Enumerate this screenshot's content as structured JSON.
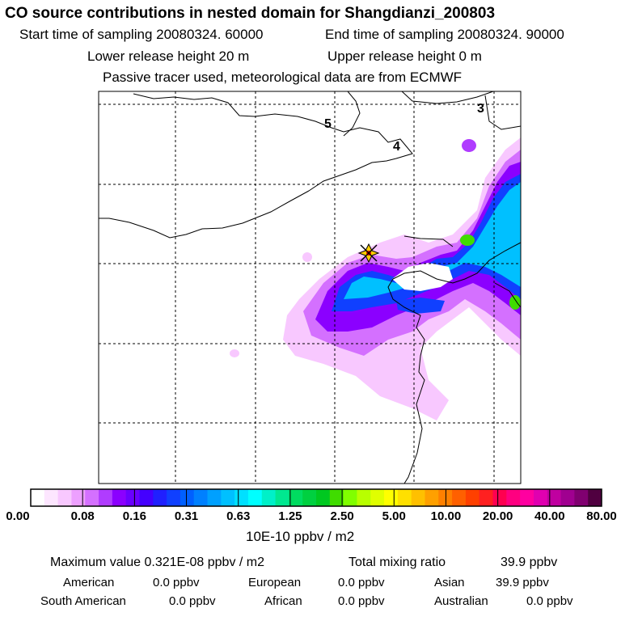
{
  "header": {
    "title": "CO  source contributions in nested domain for Shangdianzi_200803",
    "start_time": "Start time of sampling 20080324. 60000",
    "end_time": "End time of sampling 20080324. 90000",
    "lower_height": "Lower release height   20 m",
    "upper_height": "Upper release height    0 m",
    "note": "Passive tracer used, meteorological data are from ECMWF"
  },
  "map": {
    "labels": [
      "5",
      "4",
      "3"
    ]
  },
  "colorbar": {
    "tick_labels": [
      "0.00",
      "0.08",
      "0.16",
      "0.31",
      "0.63",
      "1.25",
      "2.50",
      "5.00",
      "10.00",
      "20.00",
      "40.00",
      "80.00"
    ],
    "unit": "10E-10 ppbv / m2",
    "colors": [
      "#ffffff",
      "#fde6ff",
      "#f8c8ff",
      "#eda0ff",
      "#d470ff",
      "#b03cff",
      "#8b00ff",
      "#6a00ff",
      "#4400ff",
      "#2020ff",
      "#1040ff",
      "#0060ff",
      "#0080ff",
      "#00a0ff",
      "#00c0ff",
      "#00e0ff",
      "#00ffff",
      "#00f0c8",
      "#00e890",
      "#00dc60",
      "#00d040",
      "#00c820",
      "#40dc00",
      "#80ff00",
      "#b8ff00",
      "#e0ff00",
      "#ffff00",
      "#ffe000",
      "#ffc000",
      "#ffa000",
      "#ff8000",
      "#ff6000",
      "#ff4000",
      "#ff2020",
      "#ff0050",
      "#ff0080",
      "#ff00a0",
      "#e000b0",
      "#c000a0",
      "#a00090",
      "#800070",
      "#500040"
    ]
  },
  "stats": {
    "maximum": "Maximum value  0.321E-08 ppbv / m2",
    "total": "Total mixing ratio",
    "total_value": "39.9 ppbv",
    "rows": [
      {
        "label": "American",
        "value": "0.0 ppbv"
      },
      {
        "label": "European",
        "value": "0.0 ppbv"
      },
      {
        "label": "Asian",
        "value": "39.9 ppbv"
      },
      {
        "label": "South American",
        "value": "0.0 ppbv"
      },
      {
        "label": "African",
        "value": "0.0 ppbv"
      },
      {
        "label": "Australian",
        "value": "0.0 ppbv"
      }
    ]
  }
}
